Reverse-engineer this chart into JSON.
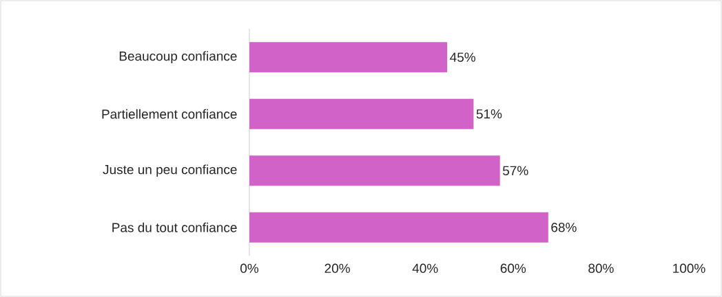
{
  "chart_data": {
    "type": "bar",
    "orientation": "horizontal",
    "categories": [
      "Beaucoup confiance",
      "Partiellement confiance",
      "Juste un peu confiance",
      "Pas du tout confiance"
    ],
    "values": [
      45,
      51,
      57,
      68
    ],
    "value_labels": [
      "45%",
      "51%",
      "57%",
      "68%"
    ],
    "color": "#d062c8",
    "xlim": [
      0,
      100
    ],
    "xticks": [
      {
        "value": 0,
        "label": "0%"
      },
      {
        "value": 20,
        "label": "20%"
      },
      {
        "value": 40,
        "label": "40%"
      },
      {
        "value": 60,
        "label": "60%"
      },
      {
        "value": 80,
        "label": "80%"
      },
      {
        "value": 100,
        "label": "100%"
      }
    ],
    "grid": false
  }
}
